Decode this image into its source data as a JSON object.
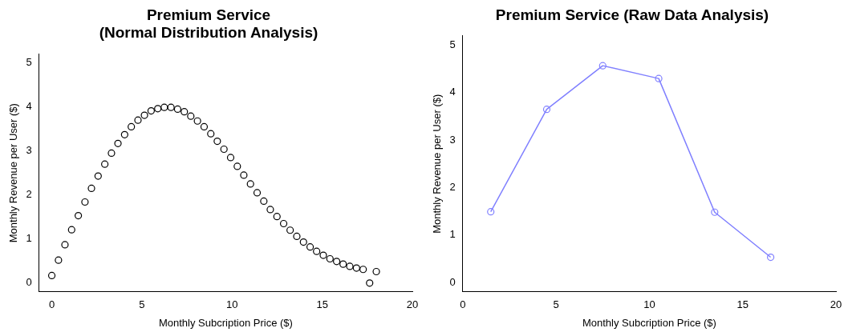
{
  "chart_data": [
    {
      "type": "scatter",
      "title": "Premium Service\n(Normal Distribution Analysis)",
      "xlabel": "Monthly Subcription Price ($)",
      "ylabel": "Monthly Revenue per User ($)",
      "marker": "circle",
      "x": [
        0,
        0.37,
        0.73,
        1.1,
        1.47,
        1.84,
        2.2,
        2.57,
        2.94,
        3.31,
        3.67,
        4.04,
        4.41,
        4.78,
        5.14,
        5.51,
        5.88,
        6.24,
        6.61,
        6.98,
        7.35,
        7.71,
        8.08,
        8.45,
        8.82,
        9.18,
        9.55,
        9.92,
        10.29,
        10.65,
        11.02,
        11.39,
        11.76,
        12.12,
        12.49,
        12.86,
        13.22,
        13.59,
        13.96,
        14.33,
        14.69,
        15.06,
        15.43,
        15.8,
        16.16,
        16.53,
        16.9,
        17.27,
        17.63,
        18
      ],
      "series": [
        {
          "color": "#000000",
          "values": [
            0.17,
            0.52,
            0.87,
            1.21,
            1.53,
            1.84,
            2.15,
            2.43,
            2.7,
            2.95,
            3.17,
            3.37,
            3.55,
            3.7,
            3.81,
            3.91,
            3.96,
            3.99,
            3.99,
            3.95,
            3.89,
            3.79,
            3.68,
            3.55,
            3.39,
            3.22,
            3.04,
            2.85,
            2.65,
            2.45,
            2.25,
            2.05,
            1.86,
            1.67,
            1.51,
            1.35,
            1.2,
            1.06,
            0.93,
            0.82,
            0.72,
            0.63,
            0.55,
            0.49,
            0.43,
            0.38,
            0.34,
            0.31,
            0,
            0.26
          ]
        }
      ],
      "xlim": [
        -0.7,
        20
      ],
      "ylim": [
        -0.2,
        5.2
      ],
      "xticks": [
        0,
        5,
        10,
        15,
        20
      ],
      "yticks": [
        0,
        1,
        2,
        3,
        4,
        5
      ]
    },
    {
      "type": "line",
      "title": "Premium Service (Raw Data Analysis)",
      "xlabel": "Monthly Subcription Price ($)",
      "ylabel": "Monthly Revenue per User ($)",
      "marker": "circle",
      "x": [
        1.5,
        4.5,
        7.5,
        10.5,
        13.5,
        16.5
      ],
      "series": [
        {
          "color": "#8080ff",
          "values": [
            1.49,
            3.65,
            4.57,
            4.3,
            1.48,
            0.53
          ]
        }
      ],
      "xlim": [
        0,
        20
      ],
      "ylim": [
        -0.2,
        5.2
      ],
      "xticks": [
        0,
        5,
        10,
        15,
        20
      ],
      "yticks": [
        0,
        1,
        2,
        3,
        4,
        5
      ]
    }
  ]
}
